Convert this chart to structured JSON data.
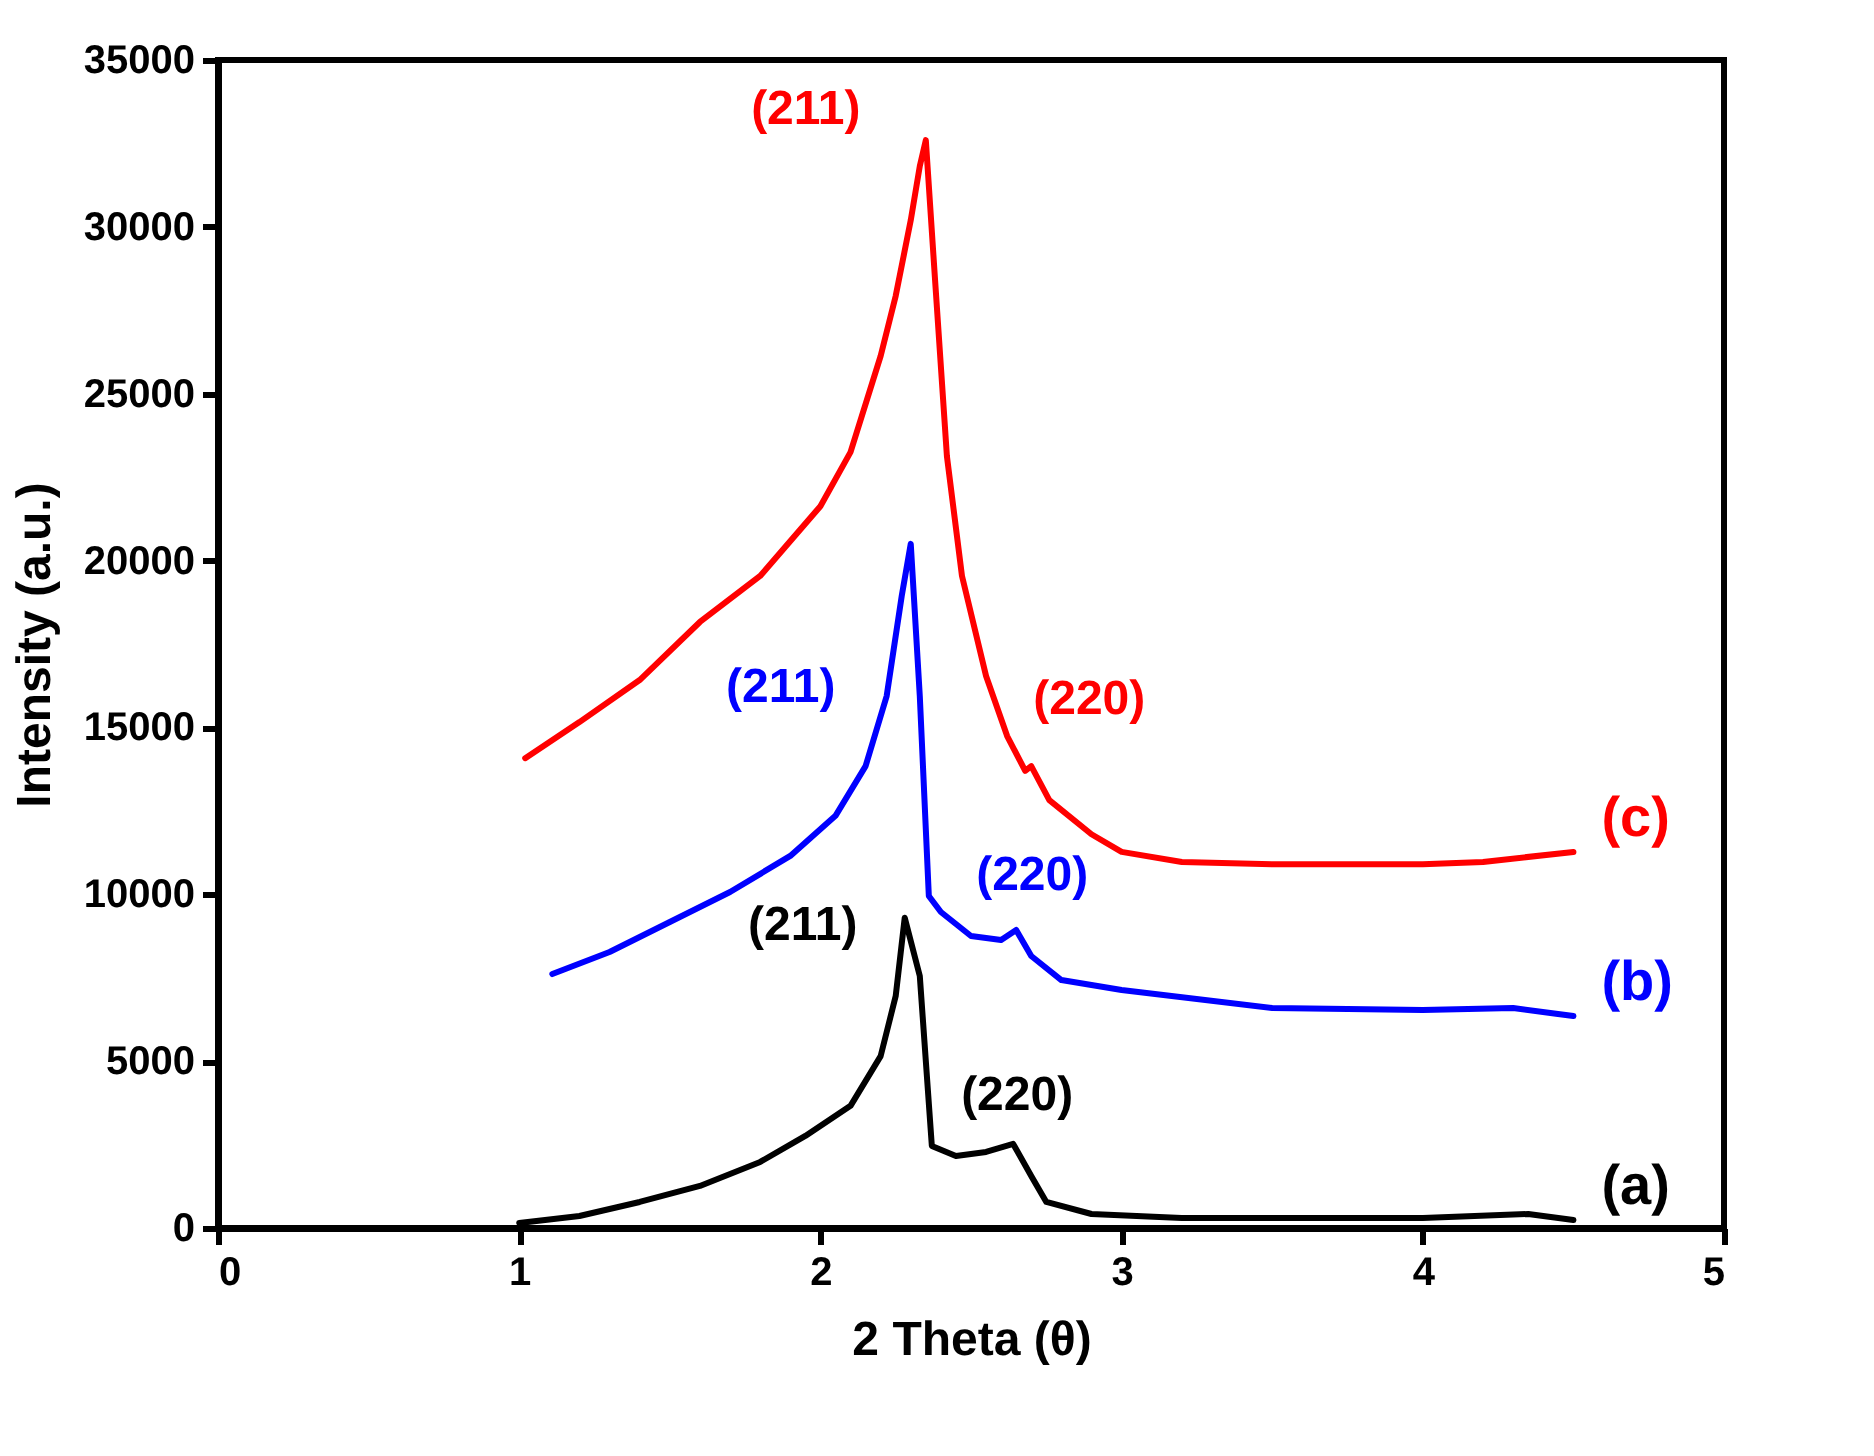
{
  "chart_data": {
    "type": "line",
    "xlabel": "2 Theta (θ)",
    "ylabel": "Intensity (a.u.)",
    "xlim": [
      0,
      5
    ],
    "xticks": [
      0,
      1,
      2,
      3,
      4,
      5
    ],
    "ylim": [
      0,
      35000
    ],
    "yticks": [
      0,
      5000,
      10000,
      15000,
      20000,
      25000,
      30000,
      35000
    ],
    "grid": false,
    "legend": false,
    "marker": "none",
    "line_style": "solid",
    "series": [
      {
        "name": "(a)",
        "color": "#000000",
        "x": [
          1.0,
          1.2,
          1.4,
          1.6,
          1.8,
          1.95,
          2.1,
          2.2,
          2.25,
          2.28,
          2.33,
          2.37,
          2.45,
          2.55,
          2.64,
          2.7,
          2.75,
          2.9,
          3.2,
          3.6,
          4.0,
          4.35,
          4.5
        ],
        "values": [
          150,
          360,
          780,
          1260,
          1980,
          2760,
          3660,
          5150,
          6950,
          9300,
          7550,
          2460,
          2160,
          2280,
          2520,
          1560,
          780,
          420,
          300,
          300,
          300,
          420,
          240
        ]
      },
      {
        "name": "(b)",
        "color": "#0000ff",
        "x": [
          1.11,
          1.3,
          1.5,
          1.7,
          1.9,
          2.05,
          2.15,
          2.22,
          2.27,
          2.3,
          2.33,
          2.36,
          2.4,
          2.5,
          2.6,
          2.65,
          2.7,
          2.8,
          3.0,
          3.5,
          4.0,
          4.3,
          4.5
        ],
        "values": [
          7610,
          8270,
          9170,
          10070,
          11150,
          12350,
          13840,
          15940,
          18940,
          20500,
          15940,
          9950,
          9470,
          8750,
          8630,
          8930,
          8150,
          7430,
          7130,
          6590,
          6530,
          6590,
          6350
        ]
      },
      {
        "name": "(c)",
        "color": "#ff0000",
        "x": [
          1.02,
          1.2,
          1.4,
          1.6,
          1.8,
          2.0,
          2.1,
          2.2,
          2.25,
          2.3,
          2.33,
          2.35,
          2.38,
          2.42,
          2.47,
          2.55,
          2.62,
          2.68,
          2.7,
          2.76,
          2.9,
          3.0,
          3.2,
          3.5,
          4.0,
          4.2,
          4.5
        ],
        "values": [
          14080,
          15160,
          16420,
          18160,
          19540,
          21630,
          23250,
          26130,
          27930,
          30200,
          31820,
          32600,
          28500,
          23130,
          19540,
          16540,
          14740,
          13700,
          13840,
          12820,
          11800,
          11270,
          10970,
          10900,
          10900,
          10970,
          11270
        ]
      }
    ],
    "annotations": [
      {
        "text": "(211)",
        "x": 2.35,
        "y": 32600
      },
      {
        "text": "(220)",
        "x": 2.7,
        "y": 13840
      },
      {
        "text": "(211)",
        "x": 2.3,
        "y": 20500
      },
      {
        "text": "(220)",
        "x": 2.65,
        "y": 8930
      },
      {
        "text": "(211)",
        "x": 2.28,
        "y": 9300
      },
      {
        "text": "(220)",
        "x": 2.64,
        "y": 2520
      }
    ]
  }
}
